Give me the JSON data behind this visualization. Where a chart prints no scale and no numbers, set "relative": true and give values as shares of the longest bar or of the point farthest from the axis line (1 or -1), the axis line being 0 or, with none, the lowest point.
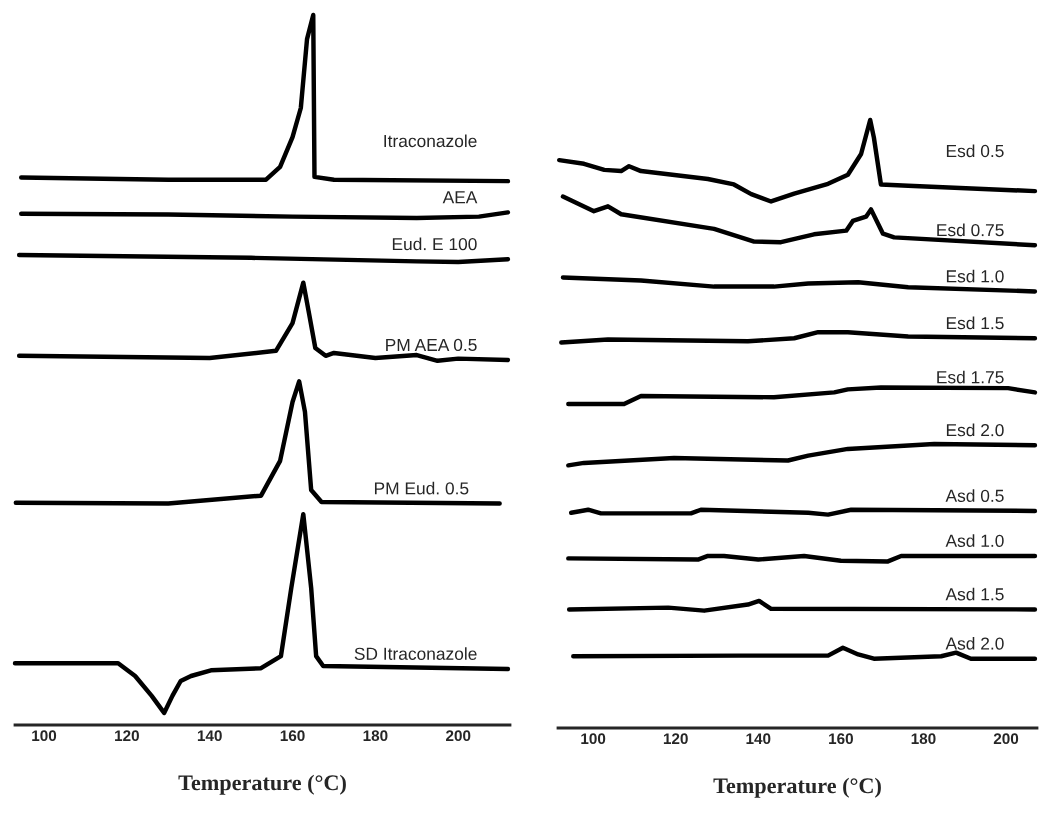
{
  "chart_data": [
    {
      "type": "line",
      "relative": true,
      "xlabel": "Temperature (°C)",
      "xlim": [
        93,
        212.5
      ],
      "xticks": [
        100,
        120,
        140,
        160,
        180,
        200
      ],
      "grid": false,
      "legend": false,
      "tick_labels": "x",
      "series": [
        {
          "name": "Itraconazole",
          "color": "#000000",
          "x": [
            94.5,
            130,
            153.6,
            157,
            160,
            162,
            163.5,
            165,
            165.3,
            170,
            212
          ],
          "values": [
            0.771,
            0.768,
            0.768,
            0.786,
            0.828,
            0.869,
            0.966,
            1.0,
            0.772,
            0.768,
            0.766
          ]
        },
        {
          "name": "AEA",
          "color": "#000000",
          "x": [
            94.5,
            130,
            160,
            190,
            205,
            212
          ],
          "values": [
            0.72,
            0.719,
            0.716,
            0.714,
            0.716,
            0.722
          ]
        },
        {
          "name": "Eud. E 100",
          "color": "#000000",
          "x": [
            94,
            150,
            190,
            200,
            212
          ],
          "values": [
            0.662,
            0.658,
            0.653,
            0.652,
            0.656
          ]
        },
        {
          "name": "PM AEA 0.5",
          "color": "#000000",
          "x": [
            94,
            140,
            156,
            160,
            162.6,
            164,
            165.5,
            168,
            170,
            180,
            190,
            195,
            200,
            212
          ],
          "values": [
            0.52,
            0.517,
            0.527,
            0.566,
            0.623,
            0.579,
            0.531,
            0.52,
            0.524,
            0.517,
            0.521,
            0.513,
            0.516,
            0.514
          ]
        },
        {
          "name": "PM Eud. 0.5",
          "color": "#000000",
          "x": [
            93.2,
            130,
            152.4,
            157,
            160,
            161.6,
            163,
            164.5,
            167,
            210
          ],
          "values": [
            0.313,
            0.312,
            0.323,
            0.372,
            0.455,
            0.484,
            0.441,
            0.331,
            0.314,
            0.312
          ]
        },
        {
          "name": "SD Itraconazole",
          "color": "#000000",
          "x": [
            93,
            117.9,
            122,
            126,
            129,
            131,
            133,
            135.5,
            140.3,
            152.4,
            157.2,
            159.7,
            162.6,
            164.5,
            165.7,
            167.4,
            212
          ],
          "values": [
            0.087,
            0.087,
            0.069,
            0.041,
            0.017,
            0.041,
            0.062,
            0.069,
            0.077,
            0.08,
            0.097,
            0.193,
            0.297,
            0.193,
            0.097,
            0.083,
            0.079
          ]
        }
      ]
    },
    {
      "type": "line",
      "relative": true,
      "xlabel": "Temperature (°C)",
      "xlim": [
        91.5,
        207.5
      ],
      "xticks": [
        100,
        120,
        140,
        160,
        180,
        200
      ],
      "grid": false,
      "legend": false,
      "tick_labels": "x",
      "series": [
        {
          "name": "Esd 0.5",
          "color": "#000000",
          "x": [
            91.8,
            97.8,
            102.7,
            106.8,
            108.7,
            111.6,
            127.8,
            134.1,
            138.3,
            143.1,
            148.7,
            156.9,
            161.7,
            164.9,
            167.1,
            168,
            169.7,
            176.3,
            207
          ],
          "values": [
            0.934,
            0.928,
            0.918,
            0.916,
            0.924,
            0.916,
            0.903,
            0.894,
            0.878,
            0.866,
            0.879,
            0.895,
            0.91,
            0.944,
            1.0,
            0.971,
            0.894,
            0.892,
            0.883
          ]
        },
        {
          "name": "Esd 0.75",
          "color": "#000000",
          "x": [
            92.7,
            100.2,
            103.6,
            106.8,
            129.3,
            139,
            145.5,
            153.5,
            161.3,
            162.9,
            166.1,
            167.3,
            170.2,
            172.9,
            207
          ],
          "values": [
            0.874,
            0.85,
            0.858,
            0.845,
            0.821,
            0.8,
            0.799,
            0.812,
            0.818,
            0.834,
            0.841,
            0.853,
            0.813,
            0.807,
            0.794
          ]
        },
        {
          "name": "Esd 1.0",
          "color": "#000000",
          "x": [
            92.7,
            111.6,
            129.3,
            143.8,
            152.1,
            164.2,
            176.3,
            207
          ],
          "values": [
            0.741,
            0.736,
            0.726,
            0.726,
            0.731,
            0.733,
            0.725,
            0.718
          ]
        },
        {
          "name": "Esd 1.5",
          "color": "#000000",
          "x": [
            92.3,
            103.6,
            137.5,
            148.7,
            154.5,
            161.7,
            176.3,
            207
          ],
          "values": [
            0.634,
            0.639,
            0.636,
            0.641,
            0.651,
            0.651,
            0.644,
            0.641
          ]
        },
        {
          "name": "Esd 1.75",
          "color": "#000000",
          "x": [
            94,
            107.5,
            111.6,
            143.8,
            158.4,
            161.7,
            169.7,
            200.5,
            207
          ],
          "values": [
            0.533,
            0.533,
            0.546,
            0.544,
            0.552,
            0.557,
            0.56,
            0.559,
            0.552
          ]
        },
        {
          "name": "Esd 2.0",
          "color": "#000000",
          "x": [
            94,
            97.8,
            119.6,
            147.2,
            152.1,
            161.7,
            182.6,
            207
          ],
          "values": [
            0.432,
            0.436,
            0.444,
            0.44,
            0.448,
            0.459,
            0.467,
            0.465
          ]
        },
        {
          "name": "Asd 0.5",
          "color": "#000000",
          "x": [
            94.7,
            98.8,
            101.9,
            123.7,
            126.1,
            152.1,
            156.9,
            162.5,
            207
          ],
          "values": [
            0.354,
            0.359,
            0.353,
            0.353,
            0.359,
            0.354,
            0.351,
            0.359,
            0.357
          ]
        },
        {
          "name": "Asd 1.0",
          "color": "#000000",
          "x": [
            94,
            125.4,
            127.8,
            131.7,
            140,
            151.1,
            160,
            171.4,
            174.6,
            207
          ],
          "values": [
            0.279,
            0.277,
            0.283,
            0.283,
            0.277,
            0.283,
            0.275,
            0.274,
            0.283,
            0.283
          ]
        },
        {
          "name": "Asd 1.5",
          "color": "#000000",
          "x": [
            94.2,
            118.2,
            126.9,
            137.5,
            140.2,
            143.1,
            207
          ],
          "values": [
            0.195,
            0.198,
            0.193,
            0.203,
            0.209,
            0.196,
            0.195
          ]
        },
        {
          "name": "Asd 2.0",
          "color": "#000000",
          "x": [
            95.2,
            135.8,
            156.9,
            160.5,
            164.2,
            168,
            184.3,
            187.9,
            191.5,
            207
          ],
          "values": [
            0.118,
            0.119,
            0.119,
            0.132,
            0.121,
            0.114,
            0.118,
            0.124,
            0.114,
            0.114
          ]
        }
      ]
    }
  ]
}
